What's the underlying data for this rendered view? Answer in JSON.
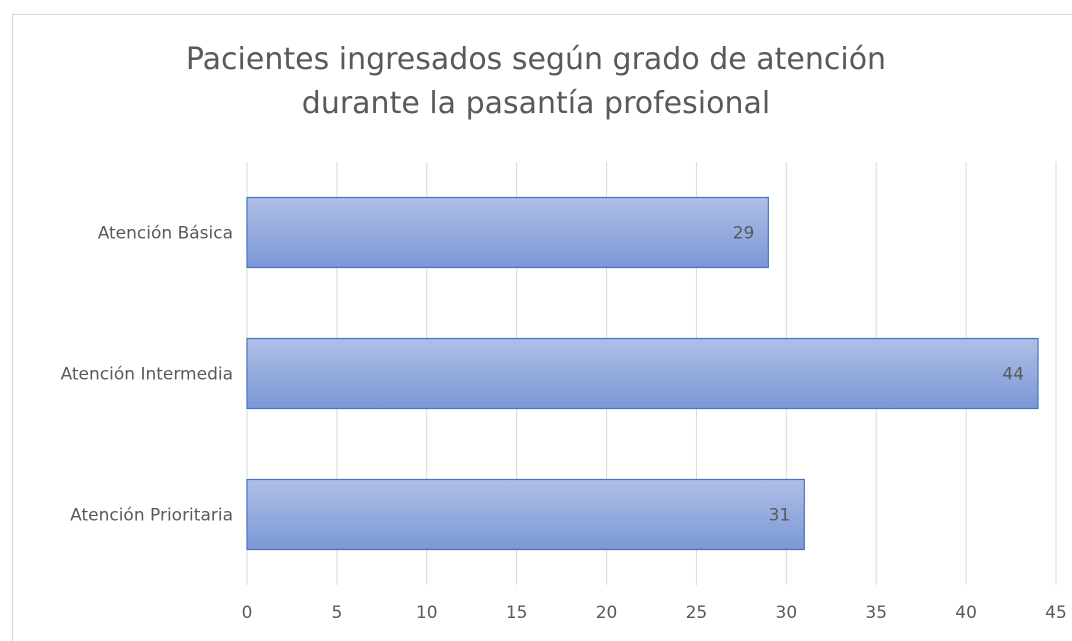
{
  "chart_data": {
    "type": "bar",
    "orientation": "horizontal",
    "title": "Pacientes ingresados según grado de atención durante la pasantía profesional",
    "categories": [
      "Atención Básica",
      "Atención Intermedia",
      "Atención Prioritaria"
    ],
    "values": [
      29,
      44,
      31
    ],
    "color": "#8faadc",
    "xlim": [
      0,
      45
    ],
    "xticks": [
      0,
      5,
      10,
      15,
      20,
      25,
      30,
      35,
      40,
      45
    ],
    "grid": true
  }
}
